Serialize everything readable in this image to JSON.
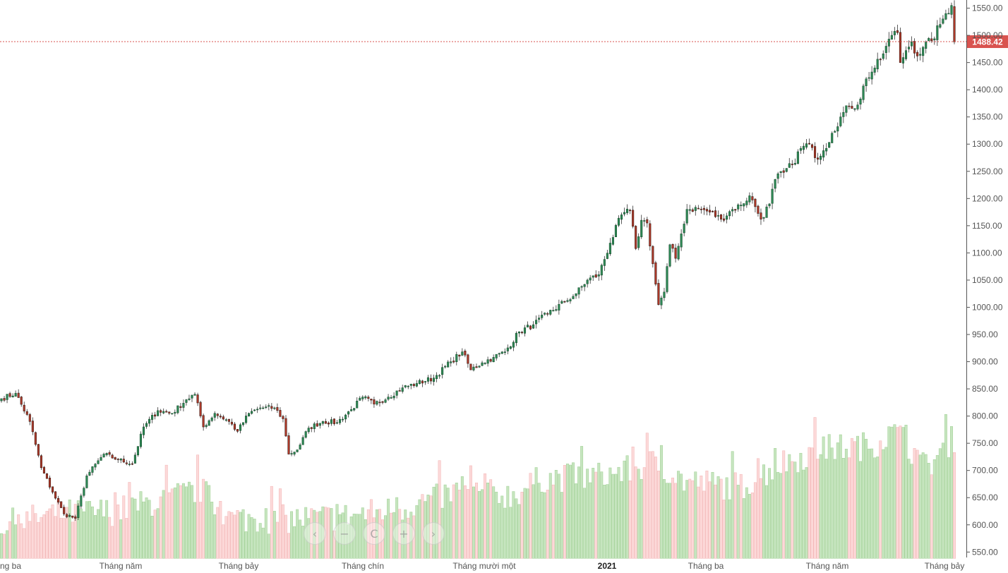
{
  "colors": {
    "up_body": "#2e8b57",
    "up_outline": "#1a4d2e",
    "down_body": "#b23a2a",
    "down_outline": "#3a1b15",
    "wick": "#333333",
    "vol_up": "#c6e5bf",
    "vol_up_edge": "#9fcf93",
    "vol_down": "#fcd9d9",
    "vol_down_edge": "#f2b2b2",
    "price_line": "#d9534f",
    "price_label_bg": "#d9534f",
    "axis_text": "#555555"
  },
  "nav": {
    "prev_icon": "chevron-left",
    "prev": "‹",
    "zoom_out_icon": "minus",
    "zoom_out": "−",
    "reset_icon": "reset",
    "reset": "C",
    "zoom_in_icon": "plus",
    "zoom_in": "+",
    "next_icon": "chevron-right",
    "next": "›"
  },
  "chart_data": {
    "type": "candlestick",
    "y_axis": {
      "range": [
        540,
        1565
      ],
      "ticks": [
        "550.00",
        "600.00",
        "650.00",
        "700.00",
        "750.00",
        "800.00",
        "850.00",
        "900.00",
        "950.00",
        "1000.00",
        "1050.00",
        "1100.00",
        "1150.00",
        "1200.00",
        "1250.00",
        "1300.00",
        "1350.00",
        "1400.00",
        "1450.00",
        "1500.00",
        "1550.00"
      ],
      "position": "right",
      "grid": false
    },
    "x_axis": {
      "labels": [
        "ng ba",
        "Tháng năm",
        "Tháng bảy",
        "Tháng chín",
        "Tháng mười một",
        "2021",
        "Tháng ba",
        "Tháng năm",
        "Tháng bảy"
      ],
      "bold_labels": [
        "2021"
      ]
    },
    "last_price": "1488.42",
    "last_price_value": 1488.42,
    "close_series": [
      {
        "i": 0,
        "close": 832
      },
      {
        "i": 5,
        "close": 842
      },
      {
        "i": 10,
        "close": 790
      },
      {
        "i": 14,
        "close": 705
      },
      {
        "i": 18,
        "close": 660
      },
      {
        "i": 22,
        "close": 620
      },
      {
        "i": 26,
        "close": 612
      },
      {
        "i": 30,
        "close": 690
      },
      {
        "i": 36,
        "close": 730
      },
      {
        "i": 41,
        "close": 720
      },
      {
        "i": 46,
        "close": 712
      },
      {
        "i": 50,
        "close": 780
      },
      {
        "i": 55,
        "close": 810
      },
      {
        "i": 60,
        "close": 805
      },
      {
        "i": 65,
        "close": 830
      },
      {
        "i": 68,
        "close": 840
      },
      {
        "i": 71,
        "close": 780
      },
      {
        "i": 75,
        "close": 805
      },
      {
        "i": 80,
        "close": 790
      },
      {
        "i": 83,
        "close": 772
      },
      {
        "i": 87,
        "close": 805
      },
      {
        "i": 91,
        "close": 815
      },
      {
        "i": 96,
        "close": 815
      },
      {
        "i": 99,
        "close": 795
      },
      {
        "i": 101,
        "close": 730
      },
      {
        "i": 104,
        "close": 738
      },
      {
        "i": 108,
        "close": 778
      },
      {
        "i": 113,
        "close": 790
      },
      {
        "i": 118,
        "close": 788
      },
      {
        "i": 123,
        "close": 812
      },
      {
        "i": 127,
        "close": 835
      },
      {
        "i": 131,
        "close": 822
      },
      {
        "i": 136,
        "close": 835
      },
      {
        "i": 141,
        "close": 852
      },
      {
        "i": 146,
        "close": 860
      },
      {
        "i": 152,
        "close": 870
      },
      {
        "i": 158,
        "close": 900
      },
      {
        "i": 162,
        "close": 918
      },
      {
        "i": 165,
        "close": 885
      },
      {
        "i": 169,
        "close": 898
      },
      {
        "i": 173,
        "close": 908
      },
      {
        "i": 177,
        "close": 918
      },
      {
        "i": 182,
        "close": 955
      },
      {
        "i": 187,
        "close": 968
      },
      {
        "i": 192,
        "close": 988
      },
      {
        "i": 198,
        "close": 1010
      },
      {
        "i": 202,
        "close": 1025
      },
      {
        "i": 206,
        "close": 1050
      },
      {
        "i": 210,
        "close": 1060
      },
      {
        "i": 214,
        "close": 1118
      },
      {
        "i": 218,
        "close": 1170
      },
      {
        "i": 221,
        "close": 1178
      },
      {
        "i": 223,
        "close": 1108
      },
      {
        "i": 225,
        "close": 1160
      },
      {
        "i": 227,
        "close": 1155
      },
      {
        "i": 229,
        "close": 1080
      },
      {
        "i": 231,
        "close": 1005
      },
      {
        "i": 233,
        "close": 1028
      },
      {
        "i": 235,
        "close": 1115
      },
      {
        "i": 237,
        "close": 1090
      },
      {
        "i": 239,
        "close": 1135
      },
      {
        "i": 241,
        "close": 1180
      },
      {
        "i": 245,
        "close": 1182
      },
      {
        "i": 249,
        "close": 1175
      },
      {
        "i": 253,
        "close": 1162
      },
      {
        "i": 257,
        "close": 1180
      },
      {
        "i": 260,
        "close": 1188
      },
      {
        "i": 263,
        "close": 1205
      },
      {
        "i": 265,
        "close": 1185
      },
      {
        "i": 267,
        "close": 1162
      },
      {
        "i": 270,
        "close": 1190
      },
      {
        "i": 272,
        "close": 1235
      },
      {
        "i": 275,
        "close": 1248
      },
      {
        "i": 278,
        "close": 1262
      },
      {
        "i": 281,
        "close": 1292
      },
      {
        "i": 284,
        "close": 1300
      },
      {
        "i": 286,
        "close": 1275
      },
      {
        "i": 289,
        "close": 1288
      },
      {
        "i": 292,
        "close": 1320
      },
      {
        "i": 295,
        "close": 1350
      },
      {
        "i": 298,
        "close": 1370
      },
      {
        "i": 301,
        "close": 1372
      },
      {
        "i": 304,
        "close": 1420
      },
      {
        "i": 307,
        "close": 1440
      },
      {
        "i": 309,
        "close": 1455
      },
      {
        "i": 311,
        "close": 1480
      },
      {
        "i": 313,
        "close": 1500
      },
      {
        "i": 315,
        "close": 1505
      },
      {
        "i": 316,
        "close": 1450
      },
      {
        "i": 318,
        "close": 1472
      },
      {
        "i": 320,
        "close": 1488
      },
      {
        "i": 322,
        "close": 1462
      },
      {
        "i": 324,
        "close": 1478
      },
      {
        "i": 327,
        "close": 1490
      },
      {
        "i": 330,
        "close": 1520
      },
      {
        "i": 332,
        "close": 1540
      },
      {
        "i": 334,
        "close": 1555
      },
      {
        "i": 335,
        "close": 1488
      }
    ],
    "volume": {
      "range": [
        540,
        1565
      ],
      "base_level": 550,
      "description_series": [
        {
          "i": 0,
          "v": 600
        },
        {
          "i": 20,
          "v": 620
        },
        {
          "i": 40,
          "v": 625
        },
        {
          "i": 60,
          "v": 650
        },
        {
          "i": 70,
          "v": 665
        },
        {
          "i": 80,
          "v": 612
        },
        {
          "i": 100,
          "v": 610
        },
        {
          "i": 120,
          "v": 615
        },
        {
          "i": 140,
          "v": 630
        },
        {
          "i": 160,
          "v": 660
        },
        {
          "i": 180,
          "v": 655
        },
        {
          "i": 190,
          "v": 685
        },
        {
          "i": 210,
          "v": 690
        },
        {
          "i": 220,
          "v": 700
        },
        {
          "i": 230,
          "v": 715
        },
        {
          "i": 240,
          "v": 680
        },
        {
          "i": 260,
          "v": 670
        },
        {
          "i": 275,
          "v": 715
        },
        {
          "i": 290,
          "v": 740
        },
        {
          "i": 305,
          "v": 745
        },
        {
          "i": 315,
          "v": 770
        },
        {
          "i": 325,
          "v": 705
        },
        {
          "i": 335,
          "v": 760
        }
      ]
    }
  }
}
